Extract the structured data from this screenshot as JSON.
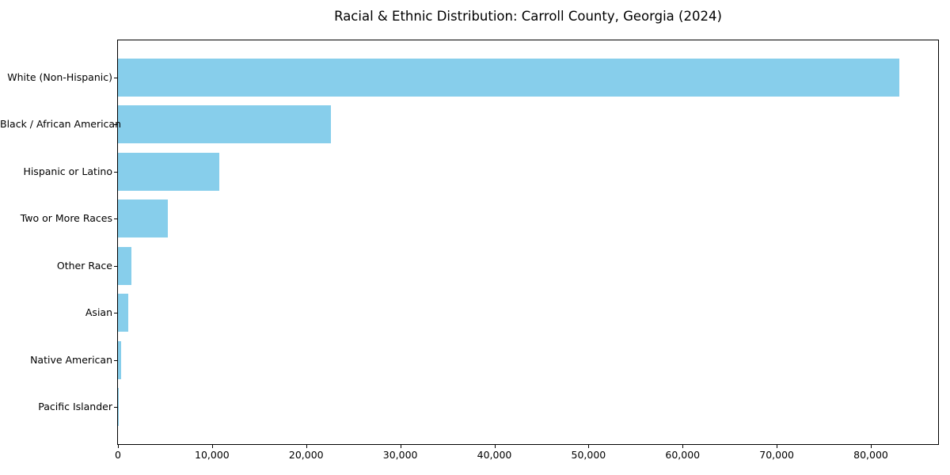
{
  "chart_data": {
    "type": "bar",
    "orientation": "horizontal",
    "title": "Racial & Ethnic Distribution: Carroll County, Georgia (2024)",
    "xlabel": "",
    "ylabel": "",
    "categories": [
      "White (Non-Hispanic)",
      "Black / African American",
      "Hispanic or Latino",
      "Two or More Races",
      "Other Race",
      "Asian",
      "Native American",
      "Pacific Islander"
    ],
    "values": [
      83000,
      22600,
      10750,
      5300,
      1400,
      1100,
      340,
      40
    ],
    "bar_color": "#87CEEB",
    "xlim": [
      0,
      87150
    ],
    "x_ticks": [
      0,
      10000,
      20000,
      30000,
      40000,
      50000,
      60000,
      70000,
      80000
    ],
    "x_tick_labels": [
      "0",
      "10,000",
      "20,000",
      "30,000",
      "40,000",
      "50,000",
      "60,000",
      "70,000",
      "80,000"
    ],
    "grid": false,
    "legend": null,
    "axis_color": "#000000",
    "background_color": "#ffffff"
  }
}
